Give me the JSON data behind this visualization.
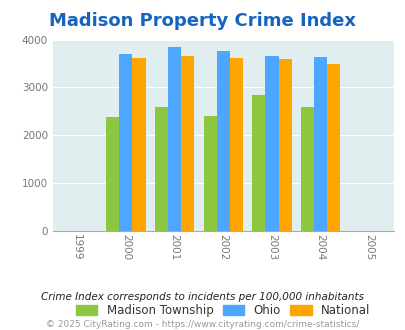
{
  "title": "Madison Property Crime Index",
  "years": [
    2000,
    2001,
    2002,
    2003,
    2004
  ],
  "x_tick_labels": [
    "1999",
    "2000",
    "2001",
    "2002",
    "2003",
    "2004",
    "2005"
  ],
  "x_tick_positions": [
    1999,
    2000,
    2001,
    2002,
    2003,
    2004,
    2005
  ],
  "madison": [
    2380,
    2600,
    2410,
    2840,
    2600
  ],
  "ohio": [
    3700,
    3840,
    3760,
    3650,
    3640
  ],
  "national": [
    3620,
    3650,
    3620,
    3590,
    3500
  ],
  "bar_width": 0.27,
  "ylim": [
    0,
    4000
  ],
  "yticks": [
    0,
    1000,
    2000,
    3000,
    4000
  ],
  "color_madison": "#8DC641",
  "color_ohio": "#4DA6FF",
  "color_national": "#FFA500",
  "bg_color": "#E0EEF0",
  "title_color": "#1565C0",
  "label_note": "Crime Index corresponds to incidents per 100,000 inhabitants",
  "footer": "© 2025 CityRating.com - https://www.cityrating.com/crime-statistics/",
  "title_fontsize": 13,
  "legend_labels": [
    "Madison Township",
    "Ohio",
    "National"
  ]
}
